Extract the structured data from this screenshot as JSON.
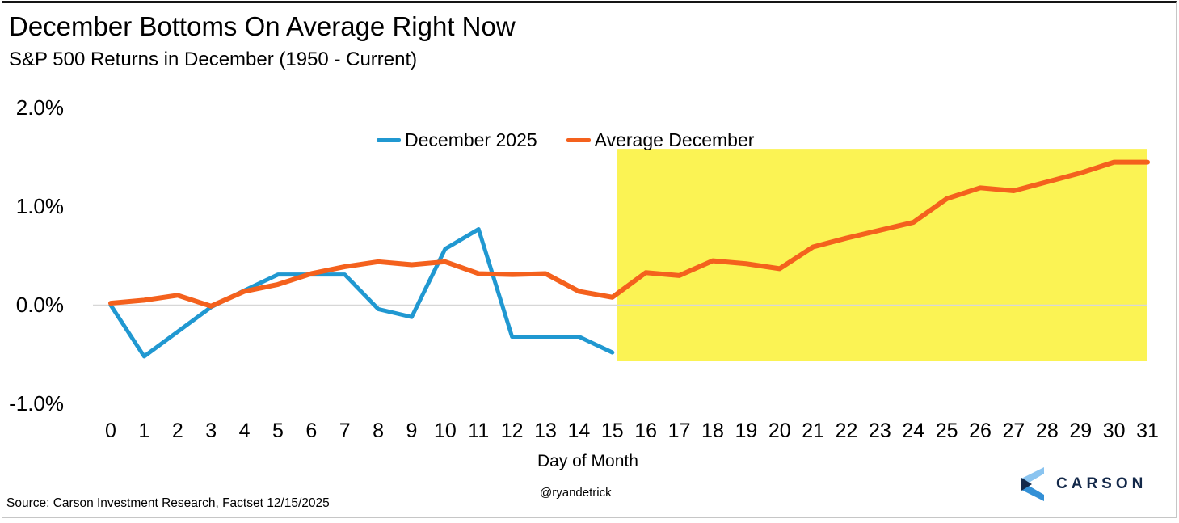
{
  "page": {
    "title": "December Bottoms On Average Right Now",
    "subtitle": "S&P 500 Returns in December (1950 - Current)"
  },
  "footer": {
    "source": "Source: Carson Investment Research, Factset 12/15/2025",
    "handle": "@ryandetrick",
    "brand": "CARSON",
    "brand_colors": {
      "navy": "#14294a",
      "light_blue": "#8ac4f0",
      "mid_blue": "#3390d6"
    }
  },
  "chart_data": {
    "type": "line",
    "title": "December Bottoms On Average Right Now",
    "subtitle": "S&P 500 Returns in December (1950 - Current)",
    "xlabel": "Day of Month",
    "ylabel": "",
    "grid": "zero-line-only",
    "legend_position": "top-center",
    "ylim": [
      -1.2,
      2.2
    ],
    "xlim": [
      0,
      31
    ],
    "x_ticks": [
      "0",
      "1",
      "2",
      "3",
      "4",
      "5",
      "6",
      "7",
      "8",
      "9",
      "10",
      "11",
      "12",
      "13",
      "14",
      "15",
      "16",
      "17",
      "18",
      "19",
      "20",
      "21",
      "22",
      "23",
      "24",
      "25",
      "26",
      "27",
      "28",
      "29",
      "30",
      "31"
    ],
    "y_ticks": [
      {
        "label": "2.0%",
        "value": 2.0
      },
      {
        "label": "1.0%",
        "value": 1.0
      },
      {
        "label": "0.0%",
        "value": 0.0
      },
      {
        "label": "-1.0%",
        "value": -1.0
      }
    ],
    "series": [
      {
        "name": "December 2025",
        "color": "#2098d1",
        "x_start_day": 0,
        "values": [
          0.0,
          -0.52,
          -0.27,
          -0.02,
          0.15,
          0.31,
          0.31,
          0.31,
          -0.04,
          -0.12,
          0.57,
          0.77,
          -0.32,
          -0.32,
          -0.32,
          -0.48
        ]
      },
      {
        "name": "Average December",
        "color": "#f4611d",
        "x_start_day": 0,
        "values": [
          0.02,
          0.05,
          0.1,
          -0.01,
          0.14,
          0.21,
          0.32,
          0.39,
          0.44,
          0.41,
          0.44,
          0.32,
          0.31,
          0.32,
          0.14,
          0.08,
          0.33,
          0.3,
          0.45,
          0.42,
          0.37,
          0.59,
          0.68,
          0.76,
          0.84,
          1.08,
          1.19,
          1.16,
          1.25,
          1.34,
          1.45,
          1.45
        ]
      }
    ],
    "highlight_region": {
      "x0": 15.15,
      "x1": 31,
      "y0": -0.565,
      "y1": 1.585,
      "color": "#fbf354",
      "meaning": "remaining days of December (after current date)"
    },
    "zero_line_color": "#d7d7d7"
  }
}
